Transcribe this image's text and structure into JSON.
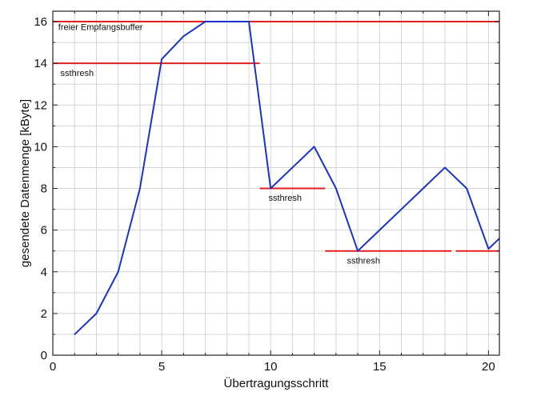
{
  "chart_data": {
    "type": "line",
    "title": "",
    "xlabel": "Übertragungsschritt",
    "ylabel": "gesendete Datenmenge [kByte]",
    "xlim": [
      0,
      20.5
    ],
    "ylim": [
      0,
      16.5
    ],
    "x_ticks": [
      0,
      5,
      10,
      15,
      20
    ],
    "y_ticks": [
      0,
      2,
      4,
      6,
      8,
      10,
      12,
      14,
      16
    ],
    "x_minor_step": 1,
    "y_minor_step": 1,
    "grid": true,
    "colors": {
      "series": "#1a33cc",
      "threshold": "#e02020",
      "grid": "#d4d4d4",
      "axis": "#222222"
    },
    "series": [
      {
        "x": [
          1,
          2,
          3,
          4,
          5,
          6,
          7,
          8,
          9,
          10,
          11,
          12,
          13,
          14,
          15,
          16,
          17,
          18,
          19,
          20,
          20.5
        ],
        "values": [
          1,
          2,
          4,
          8,
          14.2,
          15.3,
          16,
          16,
          16,
          8,
          9,
          10,
          8,
          5,
          6,
          7,
          8,
          9,
          8,
          5.1,
          5.6
        ]
      }
    ],
    "thresholds": [
      {
        "y": 16,
        "x_start": 0,
        "x_end": 20.5,
        "label": "freier Empfangsbuffer",
        "label_x": 0.25,
        "label_y": 15.6
      },
      {
        "y": 14,
        "x_start": 0,
        "x_end": 9.5,
        "label": "ssthresh",
        "label_x": 0.35,
        "label_y": 13.4
      },
      {
        "y": 8,
        "x_start": 9.5,
        "x_end": 12.5,
        "label": "ssthresh",
        "label_x": 9.9,
        "label_y": 7.4
      },
      {
        "y": 5,
        "x_start": 12.5,
        "x_end": 18.3,
        "label": "ssthresh",
        "label_x": 13.5,
        "label_y": 4.4
      },
      {
        "y": 5,
        "x_start": 18.5,
        "x_end": 20.5,
        "label": "",
        "label_x": 0,
        "label_y": 0
      }
    ]
  }
}
